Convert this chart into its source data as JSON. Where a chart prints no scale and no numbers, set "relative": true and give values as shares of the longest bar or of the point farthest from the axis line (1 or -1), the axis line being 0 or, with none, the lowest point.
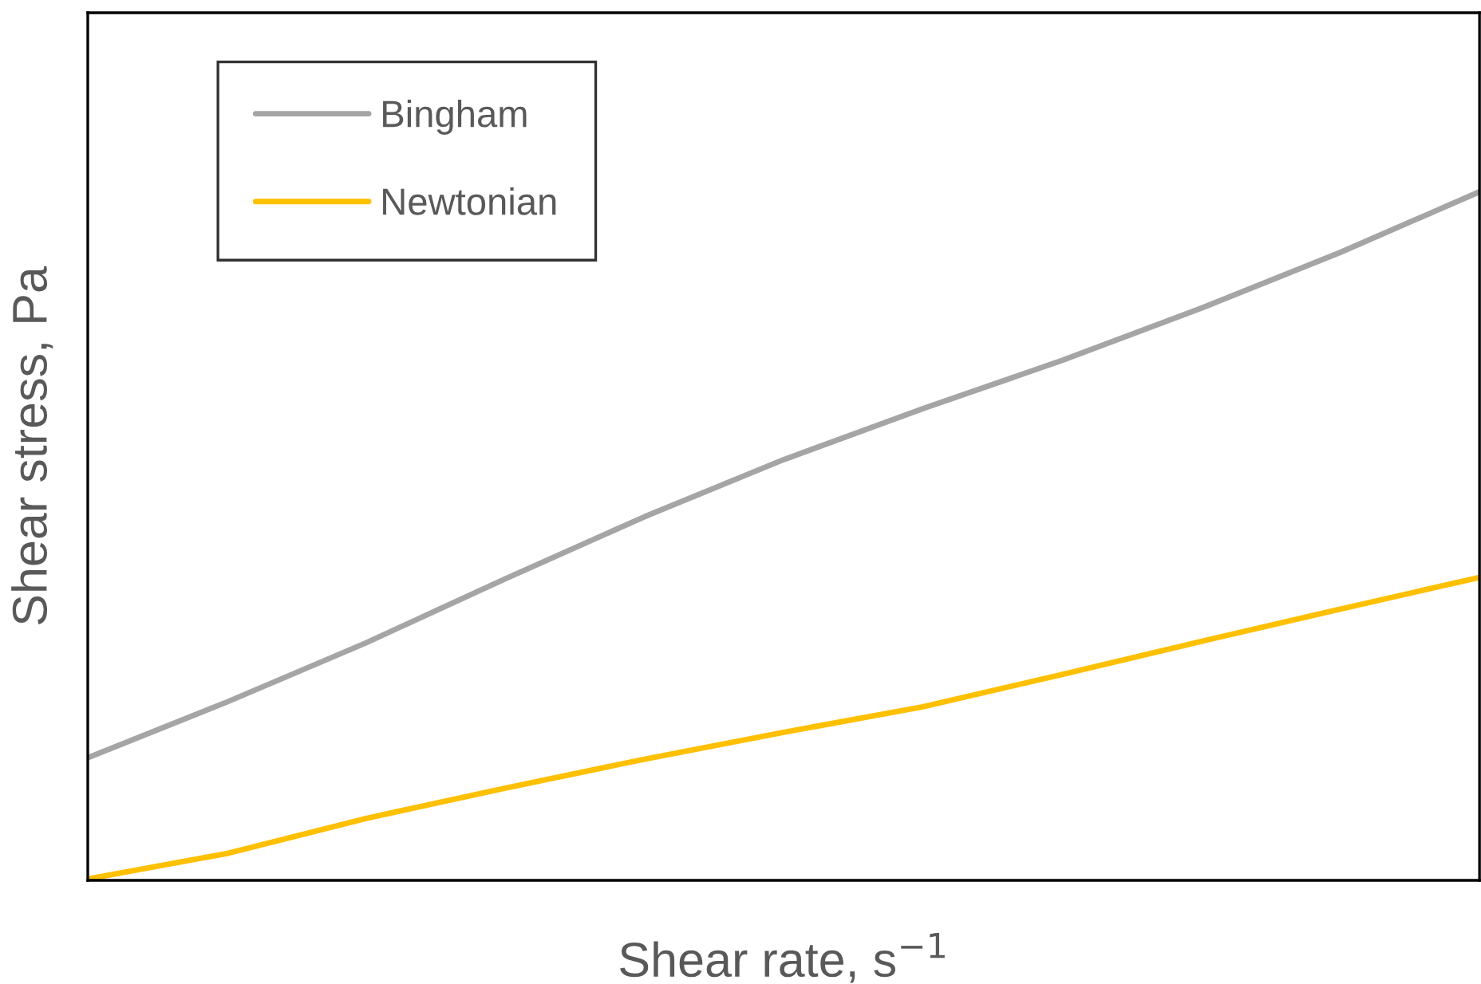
{
  "chart_data": {
    "type": "line",
    "relative": true,
    "xlabel": "Shear rate, s$^{−1}$",
    "ylabel": "Shear stress, Pa",
    "categories": [
      null,
      null,
      null,
      null,
      null,
      null,
      null,
      null,
      null,
      null,
      null
    ],
    "series": [
      {
        "name": "Bingham",
        "color": "#a5a5a5",
        "values": [
          0.178,
          0.259,
          0.345,
          0.438,
          0.528,
          0.611,
          0.685,
          0.755,
          0.831,
          0.912,
          1.0
        ]
      },
      {
        "name": "Newtonian",
        "color": "#ffc000",
        "values": [
          0.002,
          0.039,
          0.09,
          0.134,
          0.176,
          0.215,
          0.252,
          0.299,
          0.347,
          0.394,
          0.44
        ]
      }
    ],
    "legend": "top left",
    "grid": false,
    "marker": "none",
    "line_style": "solid"
  }
}
